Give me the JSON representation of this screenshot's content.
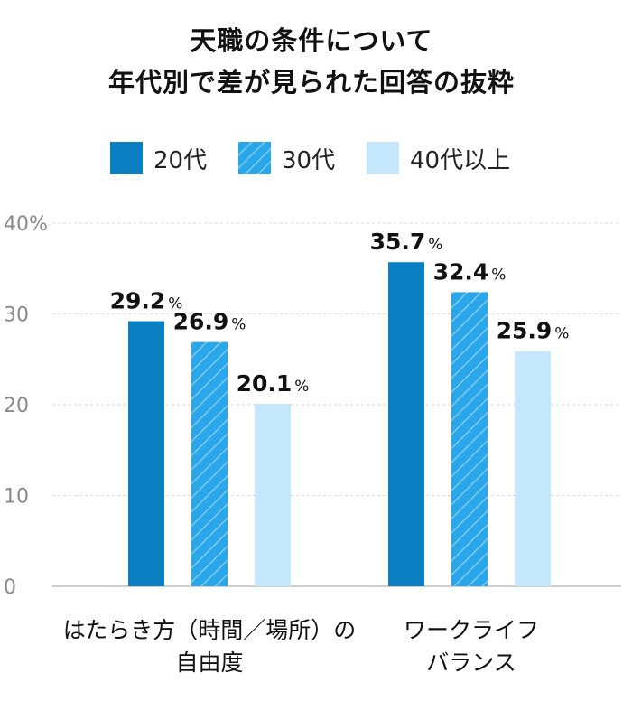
{
  "title_lines": [
    "天職の条件について",
    "年代別で差が見られた回答の抜粋"
  ],
  "legend": [
    {
      "label": "20代",
      "color": "#0a7fc2",
      "pattern": "solid"
    },
    {
      "label": "30代",
      "color": "#2aa6ea",
      "pattern": "hatched"
    },
    {
      "label": "40代以上",
      "color": "#c5e7fb",
      "pattern": "solid"
    }
  ],
  "chart_data": {
    "type": "bar",
    "title": "天職の条件について 年代別で差が見られた回答の抜粋",
    "categories": [
      [
        "はたらき方（時間／場所）の",
        "自由度"
      ],
      [
        "ワークライフ",
        "バランス"
      ]
    ],
    "series": [
      {
        "name": "20代",
        "values": [
          29.2,
          35.7
        ]
      },
      {
        "name": "30代",
        "values": [
          26.9,
          32.4
        ]
      },
      {
        "name": "40代以上",
        "values": [
          20.1,
          25.9
        ]
      }
    ],
    "value_unit": "%",
    "ylim": [
      0,
      40
    ],
    "yticks": [
      0,
      10,
      20,
      30,
      40
    ],
    "ytick_labels": [
      "0",
      "10",
      "20",
      "30",
      "40%"
    ],
    "grid": true
  }
}
